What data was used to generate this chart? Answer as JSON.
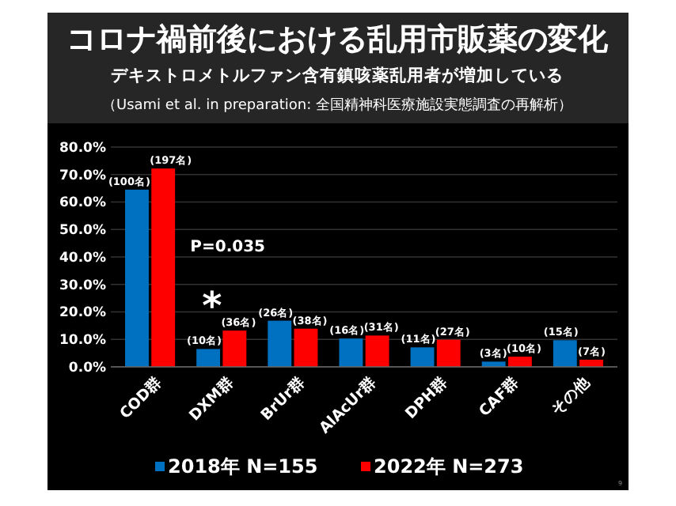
{
  "chart_data": {
    "type": "bar",
    "title": "コロナ禍前後における乱用市販薬の変化",
    "subtitle": "デキストロメトルファン含有鎮咳薬乱用者が増加している",
    "categories": [
      "COD群",
      "DXM群",
      "BrUr群",
      "AlAcUr群",
      "DPH群",
      "CAF群",
      "その他"
    ],
    "series": [
      {
        "name": "2018年 N=155",
        "color": "#0070c0",
        "values": [
          64.5,
          6.5,
          16.8,
          10.3,
          7.1,
          1.9,
          9.7
        ]
      },
      {
        "name": "2022年 N=273",
        "color": "#ff0000",
        "values": [
          72.2,
          13.2,
          13.9,
          11.4,
          9.9,
          3.7,
          2.6
        ]
      }
    ],
    "ylim": [
      0,
      80
    ],
    "yticks": [
      {
        "value": 0,
        "label": "0.0%"
      },
      {
        "value": 10,
        "label": "10.0%"
      },
      {
        "value": 20,
        "label": "20.0%"
      },
      {
        "value": 30,
        "label": "30.0%"
      },
      {
        "value": 40,
        "label": "40.0%"
      },
      {
        "value": 50,
        "label": "50.0%"
      },
      {
        "value": 60,
        "label": "60.0%"
      },
      {
        "value": 70,
        "label": "70.0%"
      },
      {
        "value": 80,
        "label": "80.0%"
      }
    ],
    "grid": "y",
    "legend": "bottom",
    "annotations": [
      "（Usami et al. in preparation: 全国精神科医療施設実態調査の再解析）",
      "9",
      "P=0.035",
      "*",
      "(100名)",
      "(197名)",
      "(10名)",
      "(36名)",
      "(26名)",
      "(38名)",
      "(16名)",
      "(31名)",
      "(11名)",
      "(27名)",
      "(3名)",
      "(10名)",
      "(15名)",
      "(7名)"
    ]
  }
}
